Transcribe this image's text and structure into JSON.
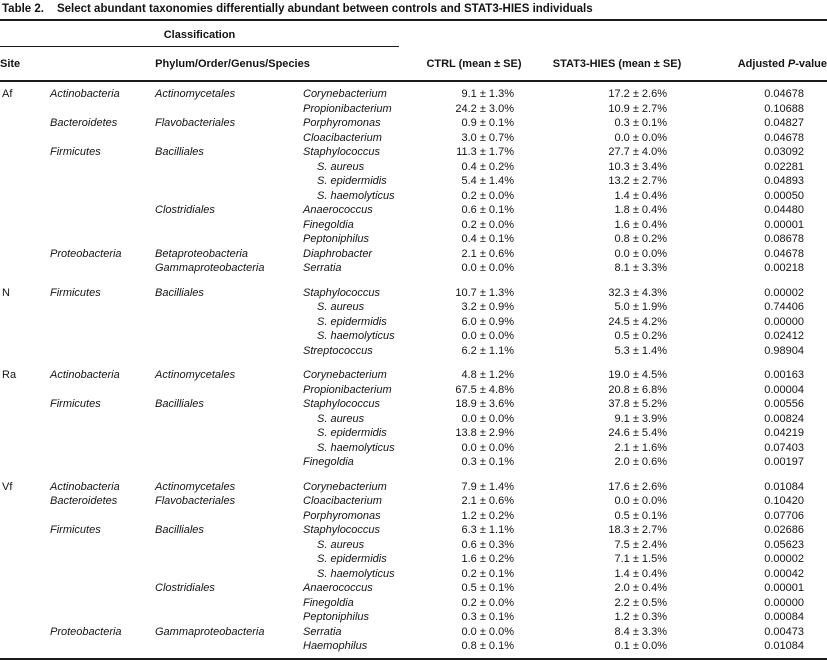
{
  "title": {
    "label": "Table 2.",
    "text": "Select abundant taxonomies differentially abundant between controls and STAT3-HIES individuals"
  },
  "header": {
    "classification": "Classification",
    "site": "Site",
    "taxonomy": "Phylum/Order/Genus/Species",
    "ctrl": "CTRL (mean ± SE)",
    "hies": "STAT3-HIES (mean ± SE)",
    "p_prefix": "Adjusted ",
    "p_italic": "P",
    "p_suffix": "-value"
  },
  "sections": [
    {
      "site": "Af",
      "rows": [
        {
          "phylum": "Actinobacteria",
          "order": "Actinomycetales",
          "taxon": "Corynebacterium",
          "indent": false,
          "ctrl": "9.1 ± 1.3%",
          "hies": "17.2 ± 2.6%",
          "p": "0.04678"
        },
        {
          "phylum": "",
          "order": "",
          "taxon": "Propionibacterium",
          "indent": false,
          "ctrl": "24.2 ± 3.0%",
          "hies": "10.9 ± 2.7%",
          "p": "0.10688"
        },
        {
          "phylum": "Bacteroidetes",
          "order": "Flavobacteriales",
          "taxon": "Porphyromonas",
          "indent": false,
          "ctrl": "0.9 ± 0.1%",
          "hies": "0.3 ± 0.1%",
          "p": "0.04827"
        },
        {
          "phylum": "",
          "order": "",
          "taxon": "Cloacibacterium",
          "indent": false,
          "ctrl": "3.0 ± 0.7%",
          "hies": "0.0 ± 0.0%",
          "p": "0.04678"
        },
        {
          "phylum": "Firmicutes",
          "order": "Bacilliales",
          "taxon": "Staphylococcus",
          "indent": false,
          "ctrl": "11.3 ± 1.7%",
          "hies": "27.7 ± 4.0%",
          "p": "0.03092"
        },
        {
          "phylum": "",
          "order": "",
          "taxon": "S. aureus",
          "indent": true,
          "ctrl": "0.4 ± 0.2%",
          "hies": "10.3 ± 3.4%",
          "p": "0.02281"
        },
        {
          "phylum": "",
          "order": "",
          "taxon": "S. epidermidis",
          "indent": true,
          "ctrl": "5.4 ± 1.4%",
          "hies": "13.2 ± 2.7%",
          "p": "0.04893"
        },
        {
          "phylum": "",
          "order": "",
          "taxon": "S. haemolyticus",
          "indent": true,
          "ctrl": "0.2 ± 0.0%",
          "hies": "1.4 ± 0.4%",
          "p": "0.00050"
        },
        {
          "phylum": "",
          "order": "Clostridiales",
          "taxon": "Anaerococcus",
          "indent": false,
          "ctrl": "0.6 ± 0.1%",
          "hies": "1.8 ± 0.4%",
          "p": "0.04480"
        },
        {
          "phylum": "",
          "order": "",
          "taxon": "Finegoldia",
          "indent": false,
          "ctrl": "0.2 ± 0.0%",
          "hies": "1.6 ± 0.4%",
          "p": "0.00001"
        },
        {
          "phylum": "",
          "order": "",
          "taxon": "Peptoniphilus",
          "indent": false,
          "ctrl": "0.4 ± 0.1%",
          "hies": "0.8 ± 0.2%",
          "p": "0.08678"
        },
        {
          "phylum": "Proteobacteria",
          "order": "Betaproteobacteria",
          "taxon": "Diaphrobacter",
          "indent": false,
          "ctrl": "2.1 ± 0.6%",
          "hies": "0.0 ± 0.0%",
          "p": "0.04678"
        },
        {
          "phylum": "",
          "order": "Gammaproteobacteria",
          "taxon": "Serratia",
          "indent": false,
          "ctrl": "0.0 ± 0.0%",
          "hies": "8.1 ± 3.3%",
          "p": "0.00218"
        }
      ]
    },
    {
      "site": "N",
      "rows": [
        {
          "phylum": "Firmicutes",
          "order": "Bacilliales",
          "taxon": "Staphylococcus",
          "indent": false,
          "ctrl": "10.7 ± 1.3%",
          "hies": "32.3 ± 4.3%",
          "p": "0.00002"
        },
        {
          "phylum": "",
          "order": "",
          "taxon": "S. aureus",
          "indent": true,
          "ctrl": "3.2 ± 0.9%",
          "hies": "5.0 ± 1.9%",
          "p": "0.74406"
        },
        {
          "phylum": "",
          "order": "",
          "taxon": "S. epidermidis",
          "indent": true,
          "ctrl": "6.0 ± 0.9%",
          "hies": "24.5 ± 4.2%",
          "p": "0.00000"
        },
        {
          "phylum": "",
          "order": "",
          "taxon": "S. haemolyticus",
          "indent": true,
          "ctrl": "0.0 ± 0.0%",
          "hies": "0.5 ± 0.2%",
          "p": "0.02412"
        },
        {
          "phylum": "",
          "order": "",
          "taxon": "Streptococcus",
          "indent": false,
          "ctrl": "6.2 ± 1.1%",
          "hies": "5.3 ± 1.4%",
          "p": "0.98904"
        }
      ]
    },
    {
      "site": "Ra",
      "rows": [
        {
          "phylum": "Actinobacteria",
          "order": "Actinomycetales",
          "taxon": "Corynebacterium",
          "indent": false,
          "ctrl": "4.8 ± 1.2%",
          "hies": "19.0 ± 4.5%",
          "p": "0.00163"
        },
        {
          "phylum": "",
          "order": "",
          "taxon": "Propionibacterium",
          "indent": false,
          "ctrl": "67.5 ± 4.8%",
          "hies": "20.8 ± 6.8%",
          "p": "0.00004"
        },
        {
          "phylum": "Firmicutes",
          "order": "Bacilliales",
          "taxon": "Staphylococcus",
          "indent": false,
          "ctrl": "18.9 ± 3.6%",
          "hies": "37.8 ± 5.2%",
          "p": "0.00556"
        },
        {
          "phylum": "",
          "order": "",
          "taxon": "S. aureus",
          "indent": true,
          "ctrl": "0.0 ± 0.0%",
          "hies": "9.1 ± 3.9%",
          "p": "0.00824"
        },
        {
          "phylum": "",
          "order": "",
          "taxon": "S. epidermidis",
          "indent": true,
          "ctrl": "13.8 ± 2.9%",
          "hies": "24.6 ± 5.4%",
          "p": "0.04219"
        },
        {
          "phylum": "",
          "order": "",
          "taxon": "S. haemolyticus",
          "indent": true,
          "ctrl": "0.0 ± 0.0%",
          "hies": "2.1 ± 1.6%",
          "p": "0.07403"
        },
        {
          "phylum": "",
          "order": "",
          "taxon": "Finegoldia",
          "indent": false,
          "ctrl": "0.3 ± 0.1%",
          "hies": "2.0 ± 0.6%",
          "p": "0.00197"
        }
      ]
    },
    {
      "site": "Vf",
      "rows": [
        {
          "phylum": "Actinobacteria",
          "order": "Actinomycetales",
          "taxon": "Corynebacterium",
          "indent": false,
          "ctrl": "7.9 ± 1.4%",
          "hies": "17.6 ± 2.6%",
          "p": "0.01084"
        },
        {
          "phylum": "Bacteroidetes",
          "order": "Flavobacteriales",
          "taxon": "Cloacibacterium",
          "indent": false,
          "ctrl": "2.1 ± 0.6%",
          "hies": "0.0 ± 0.0%",
          "p": "0.10420"
        },
        {
          "phylum": "",
          "order": "",
          "taxon": "Porphyromonas",
          "indent": false,
          "ctrl": "1.2 ± 0.2%",
          "hies": "0.5 ± 0.1%",
          "p": "0.07706"
        },
        {
          "phylum": "Firmicutes",
          "order": "Bacilliales",
          "taxon": "Staphylococcus",
          "indent": false,
          "ctrl": "6.3 ± 1.1%",
          "hies": "18.3 ± 2.7%",
          "p": "0.02686"
        },
        {
          "phylum": "",
          "order": "",
          "taxon": "S. aureus",
          "indent": true,
          "ctrl": "0.6 ± 0.3%",
          "hies": "7.5 ± 2.4%",
          "p": "0.05623"
        },
        {
          "phylum": "",
          "order": "",
          "taxon": "S. epidermidis",
          "indent": true,
          "ctrl": "1.6 ± 0.2%",
          "hies": "7.1 ± 1.5%",
          "p": "0.00002"
        },
        {
          "phylum": "",
          "order": "",
          "taxon": "S. haemolyticus",
          "indent": true,
          "ctrl": "0.2 ± 0.1%",
          "hies": "1.4 ± 0.4%",
          "p": "0.00042"
        },
        {
          "phylum": "",
          "order": "Clostridiales",
          "taxon": "Anaerococcus",
          "indent": false,
          "ctrl": "0.5 ± 0.1%",
          "hies": "2.0 ± 0.4%",
          "p": "0.00001"
        },
        {
          "phylum": "",
          "order": "",
          "taxon": "Finegoldia",
          "indent": false,
          "ctrl": "0.2 ± 0.0%",
          "hies": "2.2 ± 0.5%",
          "p": "0.00000"
        },
        {
          "phylum": "",
          "order": "",
          "taxon": "Peptoniphilus",
          "indent": false,
          "ctrl": "0.3 ± 0.1%",
          "hies": "1.2 ± 0.3%",
          "p": "0.00084"
        },
        {
          "phylum": "Proteobacteria",
          "order": "Gammaproteobacteria",
          "taxon": "Serratia",
          "indent": false,
          "ctrl": "0.0 ± 0.0%",
          "hies": "8.4 ± 3.3%",
          "p": "0.00473"
        },
        {
          "phylum": "",
          "order": "",
          "taxon": "Haemophilus",
          "indent": false,
          "ctrl": "0.8 ± 0.1%",
          "hies": "0.1 ± 0.0%",
          "p": "0.01084"
        }
      ]
    }
  ]
}
